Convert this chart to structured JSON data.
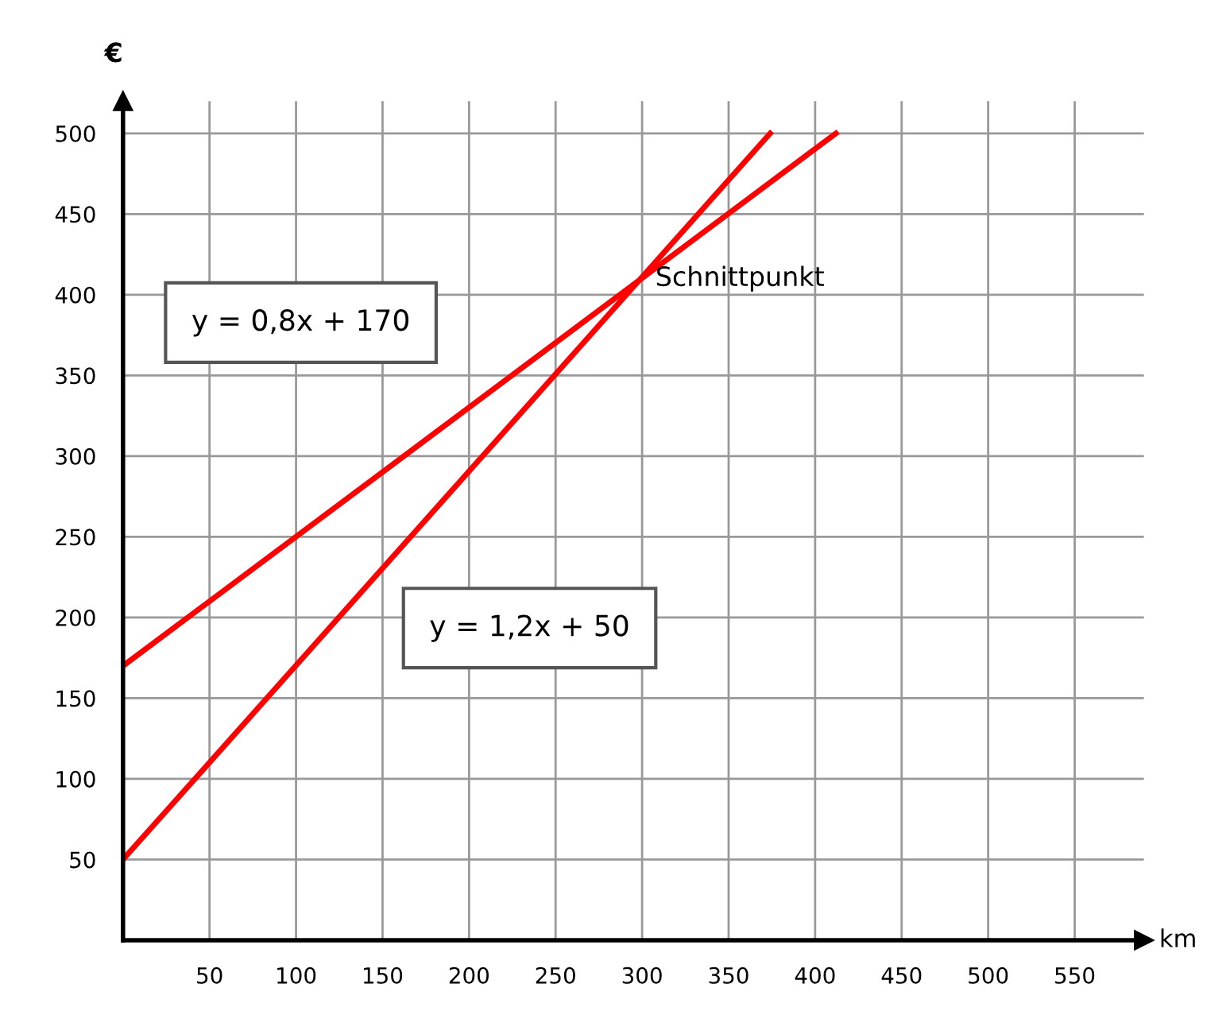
{
  "chart_data": {
    "type": "line",
    "xlabel": "km",
    "ylabel": "€",
    "series": [
      {
        "color": "#ff0000",
        "x": [
          0,
          412
        ],
        "values": [
          170,
          500
        ]
      },
      {
        "color": "#ff0000",
        "x": [
          0,
          374
        ],
        "values": [
          50,
          500
        ]
      }
    ],
    "xlim": [
      0,
      590
    ],
    "ylim": [
      0,
      520
    ],
    "xticks": [
      50,
      100,
      150,
      200,
      250,
      300,
      350,
      400,
      450,
      500,
      550
    ],
    "yticks": [
      50,
      100,
      150,
      200,
      250,
      300,
      350,
      400,
      450,
      500
    ],
    "grid": true,
    "marker": "none",
    "line_style": "solid",
    "annotations": [
      "y = 0,8x + 170",
      "y = 1,2x + 50",
      {
        "text": "Schnittpunkt",
        "x": 300,
        "y": 410
      }
    ]
  }
}
